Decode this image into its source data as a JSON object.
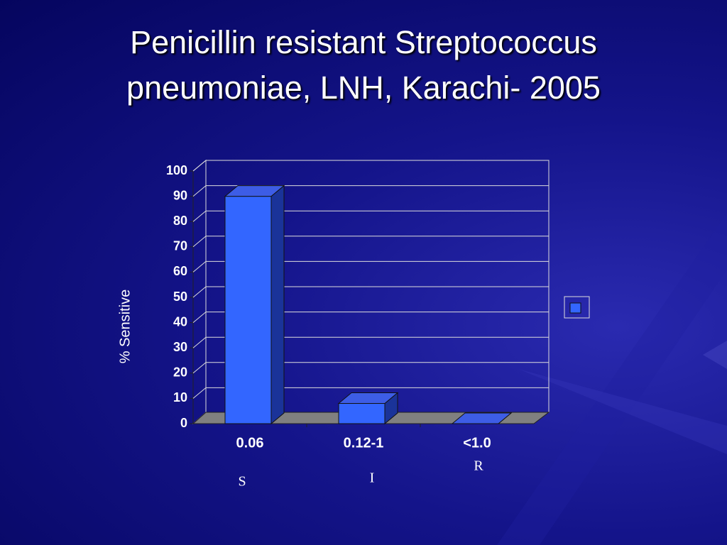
{
  "chart_data": {
    "type": "bar3d",
    "title": "Penicillin resistant Streptococcus pneumoniae, LNH, Karachi- 2005",
    "y_label": "% Sensitive",
    "categories": [
      "0.06",
      "0.12-1",
      "<1.0"
    ],
    "values": [
      90,
      8,
      0
    ],
    "color": "#3366ff",
    "annotations": [
      "S",
      "I",
      "R"
    ],
    "ylim": [
      0,
      100
    ],
    "yticks": [
      0,
      10,
      20,
      30,
      40,
      50,
      60,
      70,
      80,
      90,
      100
    ],
    "grid": true
  }
}
